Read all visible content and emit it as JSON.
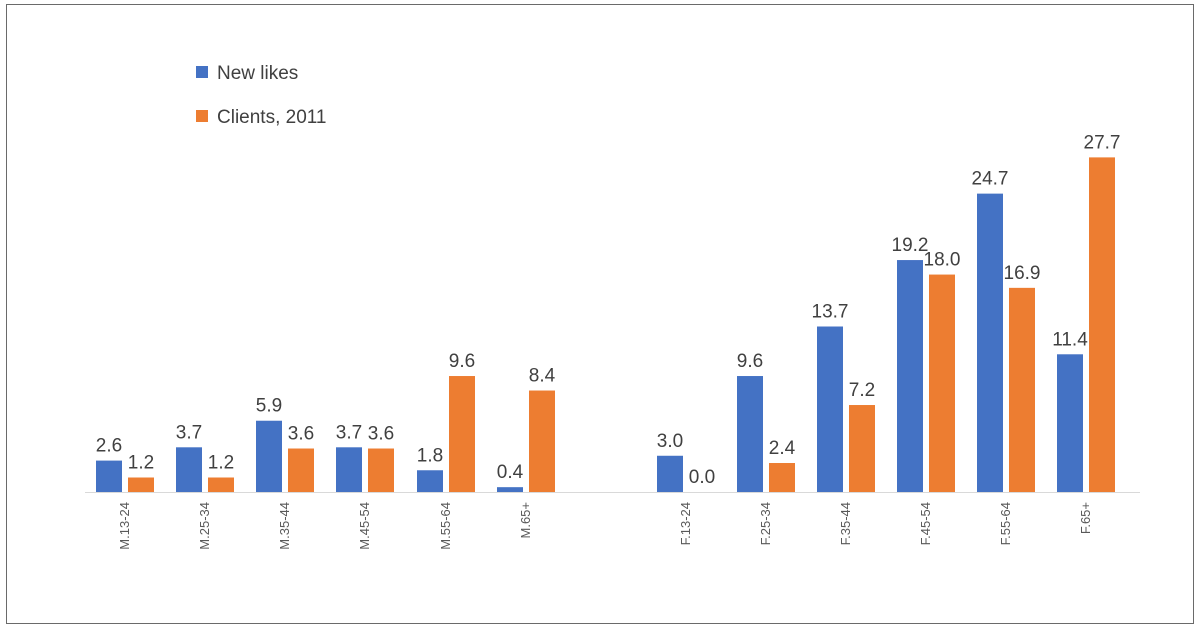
{
  "chart_data": {
    "type": "bar",
    "title": "",
    "xlabel": "",
    "ylabel": "",
    "ylim": [
      0,
      30
    ],
    "grid": false,
    "legend_position": "top-left",
    "categories": [
      "M.13-24",
      "M.25-34",
      "M.35-44",
      "M.45-54",
      "M.55-64",
      "M.65+",
      "F.13-24",
      "F.25-34",
      "F.35-44",
      "F.45-54",
      "F.55-64",
      "F.65+"
    ],
    "series": [
      {
        "name": "New likes",
        "color": "#4472c4",
        "values": [
          2.6,
          3.7,
          5.9,
          3.7,
          1.8,
          0.4,
          3.0,
          9.6,
          13.7,
          19.2,
          24.7,
          11.4
        ]
      },
      {
        "name": "Clients, 2011",
        "color": "#ed7d31",
        "values": [
          1.2,
          1.2,
          3.6,
          3.6,
          9.6,
          8.4,
          0.0,
          2.4,
          7.2,
          18.0,
          16.9,
          27.7
        ]
      }
    ]
  }
}
